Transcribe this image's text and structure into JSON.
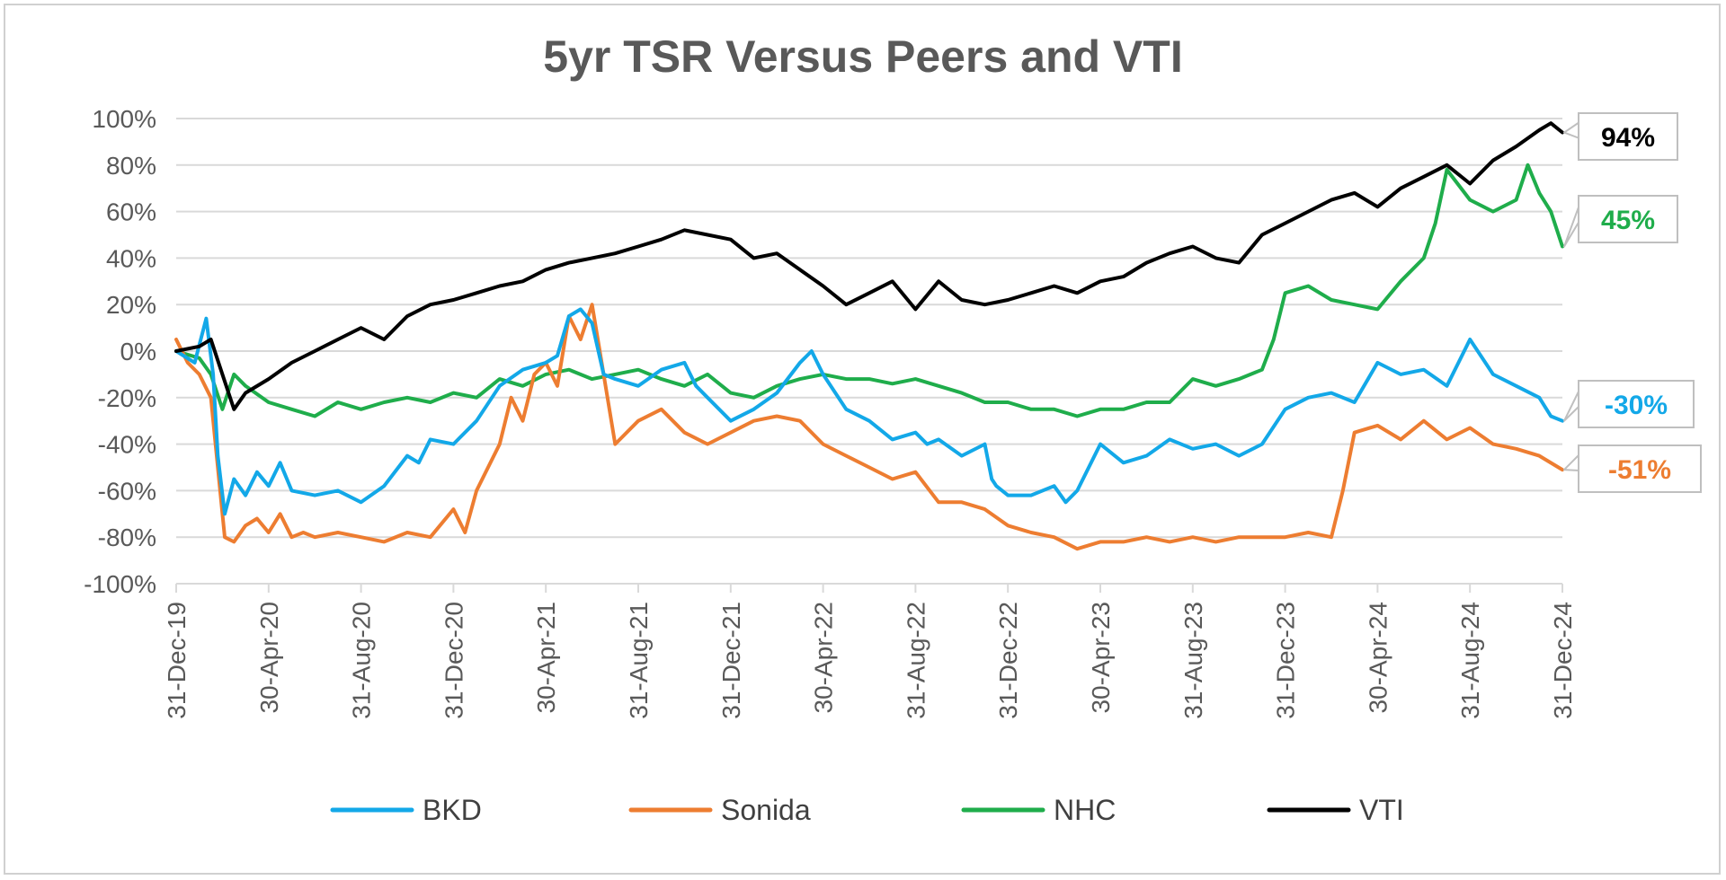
{
  "chart_data": {
    "type": "line",
    "title": "5yr TSR Versus Peers and VTI",
    "xlabel": "",
    "ylabel": "",
    "ylim": [
      -100,
      100
    ],
    "y_ticks": [
      "100%",
      "80%",
      "60%",
      "40%",
      "20%",
      "0%",
      "-20%",
      "-40%",
      "-60%",
      "-80%",
      "-100%"
    ],
    "x_ticks": [
      "31-Dec-19",
      "30-Apr-20",
      "31-Aug-20",
      "31-Dec-20",
      "30-Apr-21",
      "31-Aug-21",
      "31-Dec-21",
      "30-Apr-22",
      "31-Aug-22",
      "31-Dec-22",
      "30-Apr-23",
      "31-Aug-23",
      "31-Dec-23",
      "30-Apr-24",
      "31-Aug-24",
      "31-Dec-24"
    ],
    "x_months": [
      0,
      4,
      8,
      12,
      16,
      20,
      24,
      28,
      32,
      36,
      40,
      44,
      48,
      52,
      56,
      60
    ],
    "series": [
      {
        "name": "BKD",
        "color": "#13a8e8",
        "end_label": "-30%",
        "x": [
          0,
          0.8,
          1.3,
          1.6,
          1.8,
          2.1,
          2.5,
          3,
          3.5,
          4,
          4.5,
          5,
          6,
          7,
          8,
          9,
          10,
          10.5,
          11,
          12,
          13,
          14,
          15,
          16,
          16.5,
          17,
          17.5,
          18,
          18.5,
          19,
          20,
          21,
          22,
          22.5,
          23,
          24,
          25,
          26,
          27,
          27.5,
          28,
          29,
          30,
          31,
          32,
          32.5,
          33,
          34,
          35,
          35.3,
          35.5,
          36,
          37,
          38,
          38.5,
          39,
          40,
          41,
          42,
          43,
          44,
          45,
          46,
          47,
          48,
          49,
          50,
          51,
          52,
          53,
          54,
          55,
          55.5,
          56,
          57,
          58,
          59,
          59.5,
          60
        ],
        "y": [
          0,
          -5,
          14,
          -10,
          -45,
          -70,
          -55,
          -62,
          -52,
          -58,
          -48,
          -60,
          -62,
          -60,
          -65,
          -58,
          -45,
          -48,
          -38,
          -40,
          -30,
          -15,
          -8,
          -5,
          -2,
          15,
          18,
          12,
          -10,
          -12,
          -15,
          -8,
          -5,
          -15,
          -20,
          -30,
          -25,
          -18,
          -5,
          0,
          -10,
          -25,
          -30,
          -38,
          -35,
          -40,
          -38,
          -45,
          -40,
          -55,
          -58,
          -62,
          -62,
          -58,
          -65,
          -60,
          -40,
          -48,
          -45,
          -38,
          -42,
          -40,
          -45,
          -40,
          -25,
          -20,
          -18,
          -22,
          -5,
          -10,
          -8,
          -15,
          -5,
          5,
          -10,
          -15,
          -20,
          -28,
          -30
        ]
      },
      {
        "name": "Sonida",
        "color": "#ed7d31",
        "end_label": "-51%",
        "x": [
          0,
          0.5,
          1,
          1.5,
          1.8,
          2.1,
          2.5,
          3,
          3.5,
          4,
          4.5,
          5,
          5.5,
          6,
          7,
          8,
          9,
          10,
          11,
          12,
          12.5,
          13,
          14,
          14.5,
          15,
          15.5,
          16,
          16.5,
          17,
          17.5,
          18,
          18.5,
          19,
          20,
          21,
          22,
          23,
          24,
          25,
          26,
          27,
          28,
          29,
          30,
          31,
          32,
          33,
          34,
          35,
          36,
          37,
          38,
          39,
          40,
          41,
          42,
          43,
          44,
          45,
          46,
          47,
          48,
          49,
          50,
          50.5,
          51,
          52,
          53,
          54,
          55,
          56,
          57,
          58,
          59,
          60
        ],
        "y": [
          5,
          -5,
          -10,
          -20,
          -50,
          -80,
          -82,
          -75,
          -72,
          -78,
          -70,
          -80,
          -78,
          -80,
          -78,
          -80,
          -82,
          -78,
          -80,
          -68,
          -78,
          -60,
          -40,
          -20,
          -30,
          -10,
          -5,
          -15,
          15,
          5,
          20,
          -10,
          -40,
          -30,
          -25,
          -35,
          -40,
          -35,
          -30,
          -28,
          -30,
          -40,
          -45,
          -50,
          -55,
          -52,
          -65,
          -65,
          -68,
          -75,
          -78,
          -80,
          -85,
          -82,
          -82,
          -80,
          -82,
          -80,
          -82,
          -80,
          -80,
          -80,
          -78,
          -80,
          -60,
          -35,
          -32,
          -38,
          -30,
          -38,
          -33,
          -40,
          -42,
          -45,
          -51
        ]
      },
      {
        "name": "NHC",
        "color": "#1fad4b",
        "end_label": "45%",
        "x": [
          0,
          1,
          1.5,
          2,
          2.5,
          3,
          4,
          5,
          6,
          7,
          8,
          9,
          10,
          11,
          12,
          13,
          14,
          15,
          16,
          17,
          18,
          19,
          20,
          21,
          22,
          23,
          24,
          25,
          26,
          27,
          28,
          29,
          30,
          31,
          32,
          33,
          34,
          35,
          36,
          37,
          38,
          39,
          40,
          41,
          42,
          43,
          44,
          45,
          46,
          47,
          47.5,
          48,
          49,
          50,
          51,
          52,
          53,
          54,
          54.5,
          55,
          56,
          57,
          58,
          58.5,
          59,
          59.5,
          60
        ],
        "y": [
          0,
          -3,
          -10,
          -25,
          -10,
          -15,
          -22,
          -25,
          -28,
          -22,
          -25,
          -22,
          -20,
          -22,
          -18,
          -20,
          -12,
          -15,
          -10,
          -8,
          -12,
          -10,
          -8,
          -12,
          -15,
          -10,
          -18,
          -20,
          -15,
          -12,
          -10,
          -12,
          -12,
          -14,
          -12,
          -15,
          -18,
          -22,
          -22,
          -25,
          -25,
          -28,
          -25,
          -25,
          -22,
          -22,
          -12,
          -15,
          -12,
          -8,
          5,
          25,
          28,
          22,
          20,
          18,
          30,
          40,
          55,
          78,
          65,
          60,
          65,
          80,
          68,
          60,
          45
        ]
      },
      {
        "name": "VTI",
        "color": "#000000",
        "end_label": "94%",
        "x": [
          0,
          1,
          1.5,
          2,
          2.5,
          3,
          4,
          5,
          6,
          7,
          8,
          9,
          10,
          11,
          12,
          13,
          14,
          15,
          16,
          17,
          18,
          19,
          20,
          21,
          22,
          23,
          24,
          25,
          26,
          27,
          28,
          29,
          30,
          31,
          32,
          33,
          34,
          35,
          36,
          37,
          38,
          39,
          40,
          41,
          42,
          43,
          44,
          45,
          46,
          47,
          48,
          49,
          50,
          51,
          52,
          53,
          54,
          55,
          56,
          57,
          58,
          59,
          59.5,
          60
        ],
        "y": [
          0,
          2,
          5,
          -10,
          -25,
          -18,
          -12,
          -5,
          0,
          5,
          10,
          5,
          15,
          20,
          22,
          25,
          28,
          30,
          35,
          38,
          40,
          42,
          45,
          48,
          52,
          50,
          48,
          40,
          42,
          35,
          28,
          20,
          25,
          30,
          18,
          30,
          22,
          20,
          22,
          25,
          28,
          25,
          30,
          32,
          38,
          42,
          45,
          40,
          38,
          50,
          55,
          60,
          65,
          68,
          62,
          70,
          75,
          80,
          72,
          82,
          88,
          95,
          98,
          94
        ]
      }
    ]
  }
}
